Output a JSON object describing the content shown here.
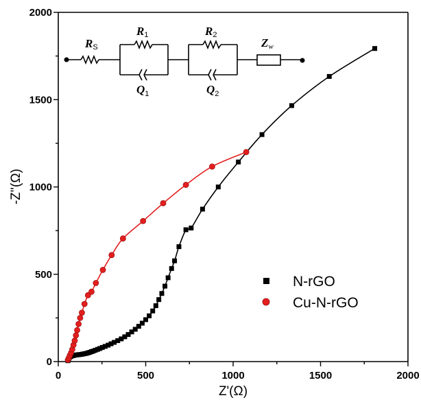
{
  "chart_data": {
    "type": "scatter",
    "xlabel": "Z'(Ω)",
    "ylabel": "-Z''(Ω)",
    "xlim": [
      0,
      2000
    ],
    "ylim": [
      0,
      2000
    ],
    "xticks": [
      "0",
      "500",
      "1000",
      "1500",
      "2000"
    ],
    "yticks": [
      "0",
      "500",
      "1000",
      "1500",
      "2000"
    ],
    "grid": false,
    "legend_position": "bottom-right",
    "series": [
      {
        "name": "N-rGO",
        "marker": "square",
        "color": "#000000",
        "points": [
          [
            55,
            5
          ],
          [
            60,
            15
          ],
          [
            66,
            25
          ],
          [
            72,
            30
          ],
          [
            80,
            33
          ],
          [
            88,
            35
          ],
          [
            96,
            37
          ],
          [
            104,
            38
          ],
          [
            112,
            39
          ],
          [
            120,
            40
          ],
          [
            130,
            41
          ],
          [
            140,
            43
          ],
          [
            150,
            45
          ],
          [
            160,
            47
          ],
          [
            170,
            50
          ],
          [
            180,
            53
          ],
          [
            190,
            57
          ],
          [
            200,
            60
          ],
          [
            212,
            65
          ],
          [
            225,
            70
          ],
          [
            238,
            75
          ],
          [
            252,
            81
          ],
          [
            268,
            87
          ],
          [
            285,
            94
          ],
          [
            302,
            102
          ],
          [
            320,
            110
          ],
          [
            340,
            120
          ],
          [
            360,
            130
          ],
          [
            380,
            142
          ],
          [
            400,
            155
          ],
          [
            420,
            170
          ],
          [
            440,
            185
          ],
          [
            460,
            202
          ],
          [
            480,
            220
          ],
          [
            500,
            240
          ],
          [
            520,
            262
          ],
          [
            540,
            290
          ],
          [
            558,
            320
          ],
          [
            575,
            355
          ],
          [
            592,
            390
          ],
          [
            610,
            432
          ],
          [
            628,
            480
          ],
          [
            648,
            533
          ],
          [
            665,
            577
          ],
          [
            690,
            658
          ],
          [
            730,
            755
          ],
          [
            760,
            765
          ],
          [
            825,
            873
          ],
          [
            915,
            1000
          ],
          [
            1030,
            1143
          ],
          [
            1165,
            1300
          ],
          [
            1335,
            1466
          ],
          [
            1550,
            1633
          ],
          [
            1810,
            1793
          ]
        ]
      },
      {
        "name": "Cu-N-rGO",
        "marker": "circle",
        "color": "#e41e1e",
        "points": [
          [
            55,
            10
          ],
          [
            60,
            20
          ],
          [
            66,
            35
          ],
          [
            73,
            50
          ],
          [
            80,
            70
          ],
          [
            87,
            95
          ],
          [
            94,
            120
          ],
          [
            101,
            150
          ],
          [
            108,
            180
          ],
          [
            116,
            215
          ],
          [
            125,
            250
          ],
          [
            135,
            280
          ],
          [
            150,
            330
          ],
          [
            170,
            380
          ],
          [
            190,
            400
          ],
          [
            215,
            450
          ],
          [
            255,
            525
          ],
          [
            305,
            610
          ],
          [
            370,
            705
          ],
          [
            485,
            805
          ],
          [
            600,
            907
          ],
          [
            730,
            1012
          ],
          [
            880,
            1117
          ],
          [
            1075,
            1200
          ]
        ]
      }
    ]
  },
  "circuit": {
    "rs_letter": "R",
    "rs_sub": "S",
    "r1_letter": "R",
    "r1_sub": "1",
    "q1_letter": "Q",
    "q1_sub": "1",
    "r2_letter": "R",
    "r2_sub": "2",
    "q2_letter": "Q",
    "q2_sub": "2",
    "zw_letter": "Z",
    "zw_sub": "w"
  }
}
